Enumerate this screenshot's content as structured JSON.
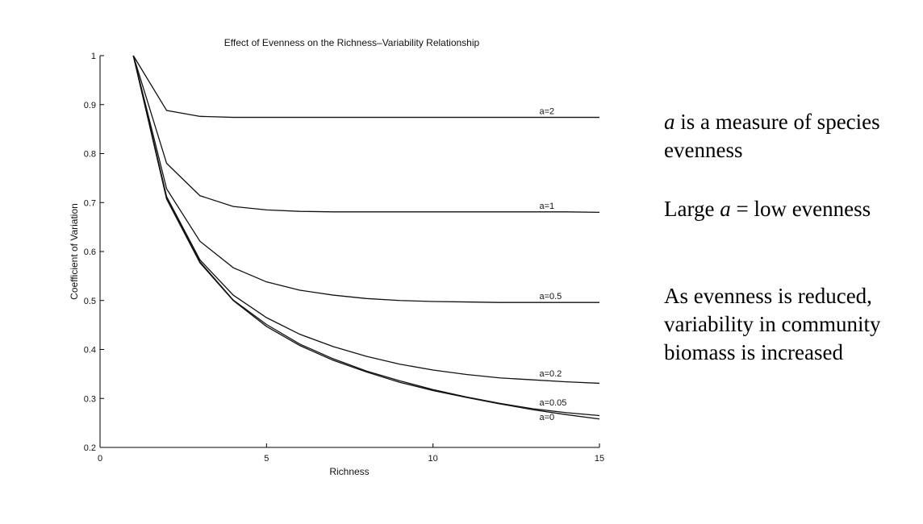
{
  "chart_data": {
    "type": "line",
    "title": "Effect of Evenness on the Richness–Variability Relationship",
    "xlabel": "Richness",
    "ylabel": "Coefficient of Variation",
    "xlim": [
      0,
      15
    ],
    "ylim": [
      0.2,
      1
    ],
    "xticks": [
      0,
      5,
      10,
      15
    ],
    "yticks": [
      0.2,
      0.3,
      0.4,
      0.5,
      0.6,
      0.7,
      0.8,
      0.9,
      1
    ],
    "ytick_labels": [
      "0.2",
      "0.3",
      "0.4",
      "0.5",
      "0.6",
      "0.7",
      "0.8",
      "0.9",
      "1"
    ],
    "grid": false,
    "x": [
      1,
      2,
      3,
      4,
      5,
      6,
      7,
      8,
      9,
      10,
      11,
      12,
      13,
      14,
      15
    ],
    "series": [
      {
        "name": "a=2",
        "values": [
          1.0,
          0.888,
          0.876,
          0.874,
          0.874,
          0.874,
          0.874,
          0.874,
          0.874,
          0.874,
          0.874,
          0.874,
          0.874,
          0.874,
          0.874
        ]
      },
      {
        "name": "a=1",
        "values": [
          1.0,
          0.78,
          0.714,
          0.692,
          0.685,
          0.682,
          0.681,
          0.681,
          0.681,
          0.681,
          0.681,
          0.681,
          0.681,
          0.681,
          0.68
        ]
      },
      {
        "name": "a=0.5",
        "values": [
          1.0,
          0.728,
          0.621,
          0.567,
          0.538,
          0.521,
          0.511,
          0.504,
          0.5,
          0.498,
          0.497,
          0.496,
          0.496,
          0.496,
          0.496
        ]
      },
      {
        "name": "a=0.2",
        "values": [
          1.0,
          0.712,
          0.583,
          0.511,
          0.465,
          0.431,
          0.406,
          0.386,
          0.37,
          0.358,
          0.349,
          0.342,
          0.338,
          0.334,
          0.331
        ]
      },
      {
        "name": "a=0.05",
        "values": [
          1.0,
          0.708,
          0.579,
          0.501,
          0.451,
          0.411,
          0.381,
          0.356,
          0.336,
          0.318,
          0.303,
          0.29,
          0.279,
          0.271,
          0.265
        ]
      },
      {
        "name": "a=0",
        "values": [
          1.0,
          0.707,
          0.577,
          0.5,
          0.447,
          0.408,
          0.378,
          0.354,
          0.333,
          0.316,
          0.302,
          0.289,
          0.277,
          0.267,
          0.258
        ]
      }
    ]
  },
  "side_text": {
    "p1": {
      "var": "a",
      "rest": " is a measure of species evenness"
    },
    "p2": {
      "pre": "Large ",
      "var": "a",
      "post": " = low evenness"
    },
    "p3": "As evenness is reduced, variability in community biomass is increased"
  }
}
